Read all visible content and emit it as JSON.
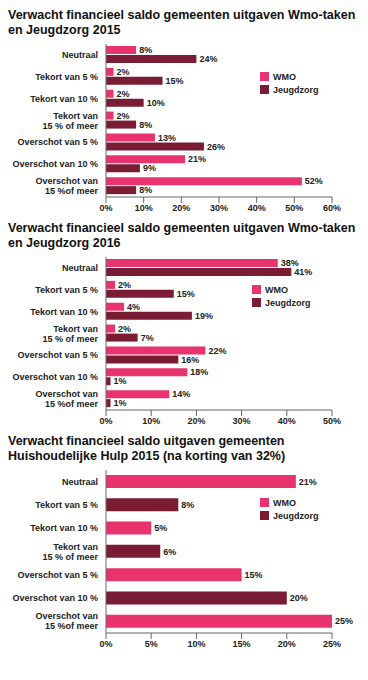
{
  "chart_data": [
    {
      "type": "bar",
      "title": "Verwacht financieel saldo gemeenten uitgaven Wmo-taken en Jeugdzorg 2015",
      "orientation": "horizontal",
      "data_labels": true,
      "categories": [
        "Neutraal",
        "Tekort van 5 %",
        "Tekort van 10 %",
        "Tekort van 15 % of meer",
        "Overschot van 5 %",
        "Overschot van 10 %",
        "Overschot van 15 %of meer"
      ],
      "series": [
        {
          "name": "WMO",
          "color": "#e8336e",
          "values": [
            8,
            2,
            2,
            2,
            13,
            21,
            52
          ],
          "value_labels": [
            "8%",
            "2%",
            "2%",
            "2%",
            "13%",
            "21%",
            "52%"
          ]
        },
        {
          "name": "Jeugdzorg",
          "color": "#7a1c33",
          "values": [
            24,
            15,
            10,
            8,
            26,
            9,
            8
          ],
          "value_labels": [
            "24%",
            "15%",
            "10%",
            "8%",
            "26%",
            "9%",
            "8%"
          ]
        }
      ],
      "xlim": [
        0,
        60
      ],
      "xticks": [
        {
          "value": 0,
          "label": "0%"
        },
        {
          "value": 10,
          "label": "10%"
        },
        {
          "value": 20,
          "label": "20%"
        },
        {
          "value": 30,
          "label": "30%"
        },
        {
          "value": 40,
          "label": "40%"
        },
        {
          "value": 50,
          "label": "50%"
        },
        {
          "value": 60,
          "label": "60%"
        }
      ]
    },
    {
      "type": "bar",
      "title": "Verwacht financieel saldo gemeenten uitgaven Wmo-taken en Jeugdzorg 2016",
      "orientation": "horizontal",
      "data_labels": true,
      "categories": [
        "Neutraal",
        "Tekort van 5 %",
        "Tekort van 10 %",
        "Tekort van 15 % of meer",
        "Overschot van 5 %",
        "Overschot van 10 %",
        "Overschot van 15 %of meer"
      ],
      "series": [
        {
          "name": "WMO",
          "color": "#e8336e",
          "values": [
            38,
            2,
            4,
            2,
            22,
            18,
            14
          ],
          "value_labels": [
            "38%",
            "2%",
            "4%",
            "2%",
            "22%",
            "18%",
            "14%"
          ]
        },
        {
          "name": "Jeugdzorg",
          "color": "#7a1c33",
          "values": [
            41,
            15,
            19,
            7,
            16,
            1,
            1
          ],
          "value_labels": [
            "41%",
            "15%",
            "19%",
            "7%",
            "16%",
            "1%",
            "1%"
          ]
        }
      ],
      "xlim": [
        0,
        50
      ],
      "xticks": [
        {
          "value": 0,
          "label": "0%"
        },
        {
          "value": 10,
          "label": "10%"
        },
        {
          "value": 20,
          "label": "20%"
        },
        {
          "value": 30,
          "label": "30%"
        },
        {
          "value": 40,
          "label": "40%"
        },
        {
          "value": 50,
          "label": "50%"
        }
      ]
    },
    {
      "type": "bar",
      "title": "Verwacht financieel saldo uitgaven gemeenten Huishoudelijke Hulp 2015 (na korting van 32%)",
      "orientation": "horizontal",
      "data_labels": true,
      "stacked": true,
      "categories": [
        "Neutraal",
        "Tekort van 5 %",
        "Tekort van 10 %",
        "Tekort van 15 % of meer",
        "Overschot van 5 %",
        "Overschot van 10 %",
        "Overschot van 15 %of meer"
      ],
      "series": [
        {
          "name": "WMO",
          "color": "#e8336e",
          "values": [
            21,
            null,
            5,
            null,
            15,
            null,
            25
          ],
          "value_labels": [
            "21%",
            null,
            "5%",
            null,
            "15%",
            null,
            "25%"
          ]
        },
        {
          "name": "Jeugdzorg",
          "color": "#7a1c33",
          "values": [
            null,
            8,
            null,
            6,
            null,
            20,
            null
          ],
          "value_labels": [
            null,
            "8%",
            null,
            "6%",
            null,
            "20%",
            null
          ]
        }
      ],
      "xlim": [
        0,
        25
      ],
      "xticks": [
        {
          "value": 0,
          "label": "0%"
        },
        {
          "value": 5,
          "label": "5%"
        },
        {
          "value": 10,
          "label": "10%"
        },
        {
          "value": 15,
          "label": "15%"
        },
        {
          "value": 20,
          "label": "20%"
        },
        {
          "value": 25,
          "label": "25%"
        }
      ]
    }
  ]
}
